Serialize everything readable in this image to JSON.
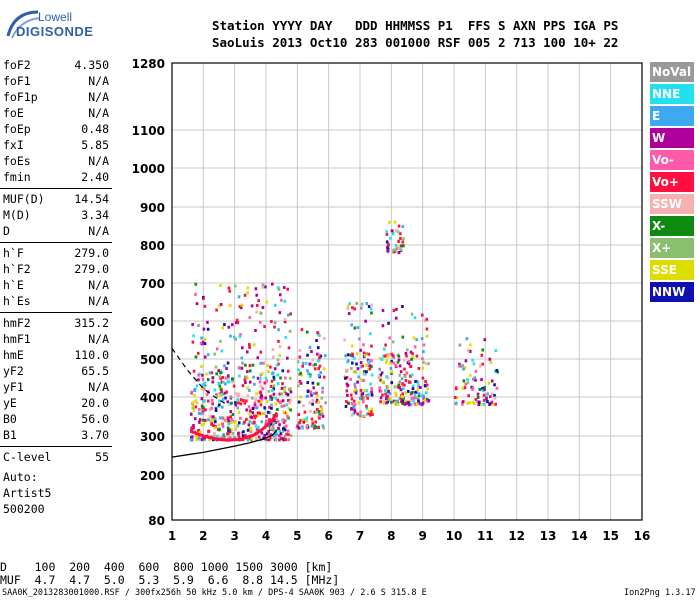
{
  "logo": {
    "line1": "Lowell",
    "line2": "DIGISONDE"
  },
  "header": {
    "line1": "Station YYYY DAY   DDD HHMMSS P1  FFS S AXN PPS IGA PS",
    "line2": "SaoLuis 2013 Oct10 283 001000 RSF 005 2 713 100 10+ 22"
  },
  "params": [
    {
      "key": "foF2",
      "value": "4.350"
    },
    {
      "key": "foF1",
      "value": "N/A"
    },
    {
      "key": "foF1p",
      "value": "N/A"
    },
    {
      "key": "foE",
      "value": "N/A"
    },
    {
      "key": "foEp",
      "value": "0.48"
    },
    {
      "key": "fxI",
      "value": "5.85"
    },
    {
      "key": "foEs",
      "value": "N/A"
    },
    {
      "key": "fmin",
      "value": "2.40"
    },
    {
      "key": "MUF(D)",
      "value": "14.54"
    },
    {
      "key": "M(D)",
      "value": "3.34"
    },
    {
      "key": "D",
      "value": "N/A"
    },
    {
      "key": "h`F",
      "value": "279.0"
    },
    {
      "key": "h`F2",
      "value": "279.0"
    },
    {
      "key": "h`E",
      "value": "N/A"
    },
    {
      "key": "h`Es",
      "value": "N/A"
    },
    {
      "key": "hmF2",
      "value": "315.2"
    },
    {
      "key": "hmF1",
      "value": "N/A"
    },
    {
      "key": "hmE",
      "value": "110.0"
    },
    {
      "key": "yF2",
      "value": "65.5"
    },
    {
      "key": "yF1",
      "value": "N/A"
    },
    {
      "key": "yE",
      "value": "20.0"
    },
    {
      "key": "B0",
      "value": "56.0"
    },
    {
      "key": "B1",
      "value": "3.70"
    },
    {
      "key": "C-level",
      "value": "55"
    }
  ],
  "auto": {
    "label": "Auto:",
    "artist": "Artist5",
    "code": "500200"
  },
  "legend": [
    {
      "label": "NoVal",
      "color": "#999999"
    },
    {
      "label": "NNE",
      "color": "#22e0f0"
    },
    {
      "label": "E",
      "color": "#3ea8f0"
    },
    {
      "label": "W",
      "color": "#b0009c"
    },
    {
      "label": "Vo-",
      "color": "#ff5aaa"
    },
    {
      "label": "Vo+",
      "color": "#ff1040"
    },
    {
      "label": "SSW",
      "color": "#f7b0b0"
    },
    {
      "label": "X-",
      "color": "#0e8a10"
    },
    {
      "label": "X+",
      "color": "#88c070"
    },
    {
      "label": "SSE",
      "color": "#dddd00"
    },
    {
      "label": "NNW",
      "color": "#1010b0"
    }
  ],
  "muf_table": {
    "d_row": "D    100  200  400  600  800 1000 1500 3000 [km]",
    "muf_row": "MUF  4.7  4.7  5.0  5.3  5.9  6.6  8.8 14.5 [MHz]"
  },
  "footer": {
    "left": "SAA0K_2013283001000.RSF / 300fx256h 50 kHz 5.0 km / DPS-4 SAA0K 903 / 2.6 S 315.8 E",
    "right": "Ion2Png 1.3.17"
  },
  "chart_data": {
    "type": "scatter",
    "title": "",
    "xlabel": "",
    "ylabel": "",
    "xlim": [
      1,
      16
    ],
    "ylim": [
      80,
      1280
    ],
    "x_ticks": [
      1,
      2,
      3,
      4,
      5,
      6,
      7,
      8,
      9,
      10,
      11,
      12,
      13,
      14,
      15,
      16
    ],
    "y_ticks": [
      80,
      200,
      300,
      400,
      500,
      600,
      700,
      800,
      900,
      1000,
      1100,
      1280
    ],
    "grid": true,
    "legend_placement": "right",
    "traces": {
      "electron_density_profile": [
        [
          4.35,
          315
        ],
        [
          4.2,
          302
        ],
        [
          3.9,
          292
        ],
        [
          3.5,
          283
        ],
        [
          3.0,
          274
        ],
        [
          2.5,
          266
        ],
        [
          2.0,
          258
        ],
        [
          1.5,
          252
        ],
        [
          1.0,
          246
        ]
      ],
      "dashed_profile": [
        [
          1.0,
          528
        ],
        [
          1.5,
          470
        ],
        [
          2.0,
          422
        ],
        [
          2.4,
          398
        ],
        [
          2.8,
          378
        ]
      ],
      "ordinary_trace": [
        [
          1.6,
          312
        ],
        [
          2.0,
          300
        ],
        [
          2.4,
          292
        ],
        [
          2.8,
          289
        ],
        [
          3.2,
          292
        ],
        [
          3.6,
          302
        ],
        [
          3.9,
          318
        ],
        [
          4.2,
          340
        ],
        [
          4.35,
          360
        ]
      ]
    },
    "echo_clusters": [
      {
        "xmin": 1.6,
        "xmax": 4.8,
        "ymin": 290,
        "ymax": 700,
        "dense_ymax": 480,
        "dense_count": 520,
        "sparse_count": 120
      },
      {
        "xmin": 5.0,
        "xmax": 5.9,
        "ymin": 320,
        "ymax": 580,
        "dense_ymax": 500,
        "dense_count": 110,
        "sparse_count": 20
      },
      {
        "xmin": 6.5,
        "xmax": 7.4,
        "ymin": 350,
        "ymax": 650,
        "dense_ymax": 520,
        "dense_count": 120,
        "sparse_count": 25
      },
      {
        "xmin": 7.6,
        "xmax": 9.2,
        "ymin": 380,
        "ymax": 650,
        "dense_ymax": 520,
        "dense_count": 190,
        "sparse_count": 25
      },
      {
        "xmin": 7.8,
        "xmax": 8.4,
        "ymin": 780,
        "ymax": 860,
        "dense_ymax": 830,
        "dense_count": 30,
        "sparse_count": 10
      },
      {
        "xmin": 10.0,
        "xmax": 11.4,
        "ymin": 380,
        "ymax": 560,
        "dense_ymax": 500,
        "dense_count": 80,
        "sparse_count": 10
      }
    ]
  }
}
